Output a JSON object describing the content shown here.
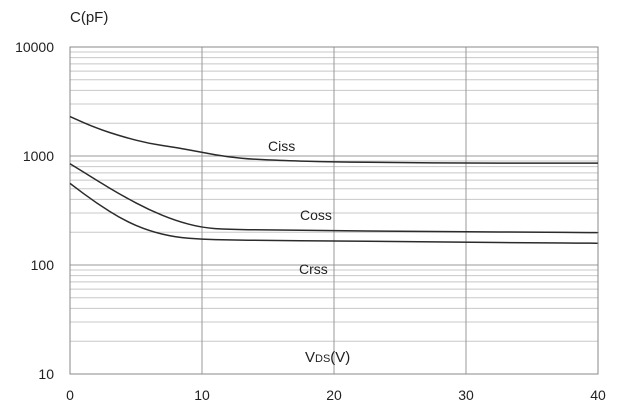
{
  "chart_data": {
    "type": "line",
    "title": "",
    "ylabel": "C(pF)",
    "xlabel_main": "V",
    "xlabel_sub": "DS",
    "xlabel_tail": "(V)",
    "xlim": [
      0,
      40
    ],
    "ylim": [
      10,
      10000
    ],
    "yscale": "log",
    "grid": true,
    "x_ticks": [
      "0",
      "10",
      "20",
      "30",
      "40"
    ],
    "y_ticks": [
      "10",
      "100",
      "1000",
      "10000"
    ],
    "series": [
      {
        "name": "Ciss",
        "x": [
          0,
          2,
          4,
          6,
          8,
          10,
          12,
          14,
          16,
          20,
          25,
          30,
          35,
          40
        ],
        "y": [
          2300,
          1800,
          1500,
          1300,
          1200,
          1080,
          980,
          930,
          910,
          880,
          870,
          860,
          860,
          860
        ]
      },
      {
        "name": "Coss",
        "x": [
          0,
          2,
          4,
          6,
          8,
          10,
          12,
          15,
          20,
          25,
          30,
          35,
          40
        ],
        "y": [
          850,
          600,
          430,
          320,
          255,
          220,
          212,
          210,
          206,
          204,
          202,
          200,
          198
        ]
      },
      {
        "name": "Crss",
        "x": [
          0,
          2,
          4,
          6,
          8,
          10,
          12,
          15,
          20,
          25,
          30,
          35,
          40
        ],
        "y": [
          560,
          370,
          260,
          205,
          180,
          172,
          170,
          168,
          166,
          164,
          162,
          160,
          158
        ]
      }
    ]
  }
}
